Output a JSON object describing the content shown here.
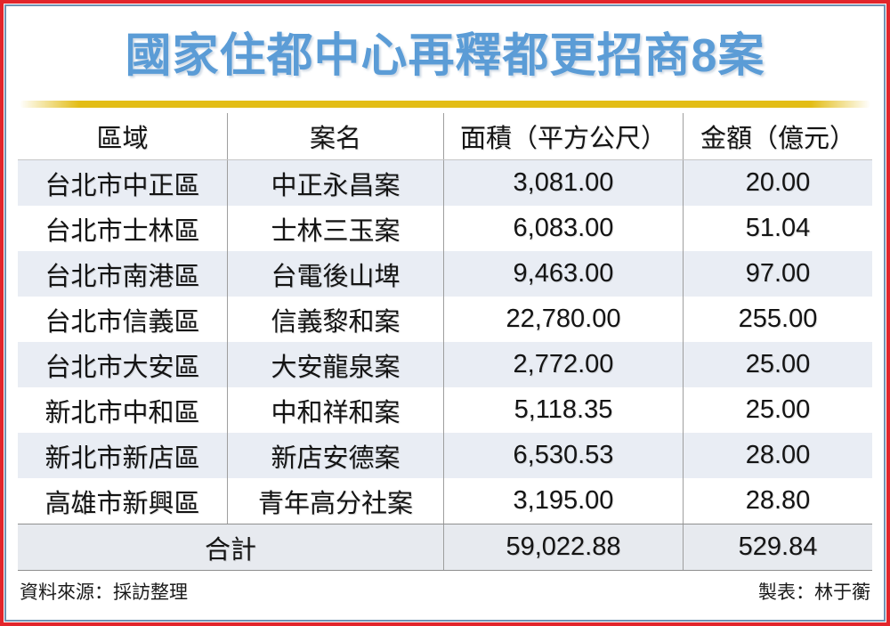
{
  "title": "國家住都中心再釋都更招商8案",
  "colors": {
    "title_blue": "#5b9cd6",
    "underline_yellow": "#e3bd16",
    "frame_red": "#e2252b",
    "frame_blue": "#6f92b2",
    "row_stripe": "#e9edf4",
    "total_row_bg": "#e7eaef"
  },
  "chart_data": {
    "type": "table",
    "title": "國家住都中心再釋都更招商8案",
    "columns": [
      "區域",
      "案名",
      "面積（平方公尺）",
      "金額（億元）"
    ],
    "rows": [
      {
        "region": "台北市中正區",
        "project": "中正永昌案",
        "area": "3,081.00",
        "amount": "20.00"
      },
      {
        "region": "台北市士林區",
        "project": "士林三玉案",
        "area": "6,083.00",
        "amount": "51.04"
      },
      {
        "region": "台北市南港區",
        "project": "台電後山埤",
        "area": "9,463.00",
        "amount": "97.00"
      },
      {
        "region": "台北市信義區",
        "project": "信義黎和案",
        "area": "22,780.00",
        "amount": "255.00"
      },
      {
        "region": "台北市大安區",
        "project": "大安龍泉案",
        "area": "2,772.00",
        "amount": "25.00"
      },
      {
        "region": "新北市中和區",
        "project": "中和祥和案",
        "area": "5,118.35",
        "amount": "25.00"
      },
      {
        "region": "新北市新店區",
        "project": "新店安德案",
        "area": "6,530.53",
        "amount": "28.00"
      },
      {
        "region": "高雄市新興區",
        "project": "青年高分社案",
        "area": "3,195.00",
        "amount": "28.80"
      }
    ],
    "total": {
      "label": "合計",
      "area": "59,022.88",
      "amount": "529.84"
    }
  },
  "footer": {
    "source": "資料來源：採訪整理",
    "credit": "製表：林于蘅"
  }
}
